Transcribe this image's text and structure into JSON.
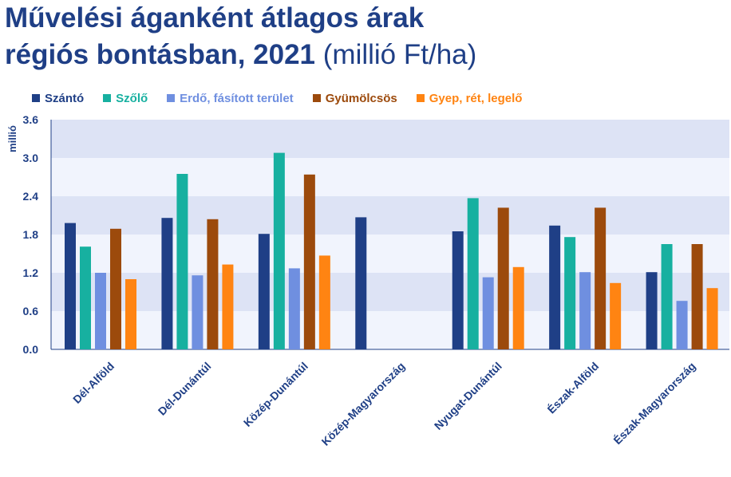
{
  "header": {
    "title_line1": "Művelési áganként átlagos árak",
    "title_line2": "régiós bontásban, 2021",
    "title_unit": "(millió Ft/ha)"
  },
  "chart_data": {
    "type": "bar",
    "title": "Művelési áganként átlagos árak régiós bontásban, 2021 (millió Ft/ha)",
    "ylabel": "millió",
    "xlabel": "",
    "ylim": [
      0,
      3.6
    ],
    "yticks": [
      "0.0",
      "0.6",
      "1.2",
      "1.8",
      "2.4",
      "3.0",
      "3.6"
    ],
    "grid": "alternating horizontal bands",
    "legend_position": "top",
    "categories": [
      "Dél-Alföld",
      "Dél-Dunántúl",
      "Közép-Dunántúl",
      "Közép-Magyarország",
      "Nyugat-Dunántúl",
      "Észak-Alföld",
      "Észak-Magyarország"
    ],
    "series": [
      {
        "name": "Szántó",
        "color": "#1f3f86",
        "values": [
          1.98,
          2.06,
          1.81,
          2.07,
          1.85,
          1.94,
          1.21
        ]
      },
      {
        "name": "Szőlő",
        "color": "#17b0a0",
        "values": [
          1.61,
          2.75,
          3.08,
          null,
          2.37,
          1.76,
          1.65
        ]
      },
      {
        "name": "Erdő, fásított terület",
        "color": "#6f8fe0",
        "values": [
          1.2,
          1.16,
          1.27,
          null,
          1.13,
          1.21,
          0.76
        ]
      },
      {
        "name": "Gyümölcsös",
        "color": "#9c4a0c",
        "values": [
          1.89,
          2.04,
          2.74,
          null,
          2.22,
          2.22,
          1.65
        ]
      },
      {
        "name": "Gyep, rét, legelő",
        "color": "#ff8412",
        "values": [
          1.1,
          1.33,
          1.47,
          null,
          1.29,
          1.04,
          0.96
        ]
      }
    ]
  }
}
